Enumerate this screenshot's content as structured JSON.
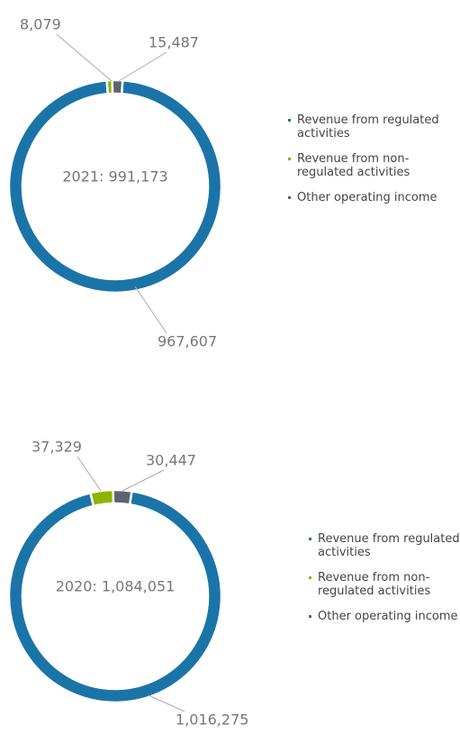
{
  "chart_data": [
    {
      "type": "pie",
      "donut": true,
      "center_label": "2021: 991,173",
      "categories": [
        "Revenue from regulated activities",
        "Revenue from non-regulated activities",
        "Other operating income"
      ],
      "values": [
        967607,
        8079,
        15487
      ],
      "value_labels": [
        "967,607",
        "8,079",
        "15,487"
      ],
      "colors": [
        "#1b74a8",
        "#8cb400",
        "#5d6470"
      ]
    },
    {
      "type": "pie",
      "donut": true,
      "center_label": "2020: 1,084,051",
      "categories": [
        "Revenue from regulated activities",
        "Revenue from non-regulated activities",
        "Other operating income"
      ],
      "values": [
        1016275,
        37329,
        30447
      ],
      "value_labels": [
        "1,016,275",
        "37,329",
        "30,447"
      ],
      "colors": [
        "#1b74a8",
        "#8cb400",
        "#5d6470"
      ]
    }
  ]
}
